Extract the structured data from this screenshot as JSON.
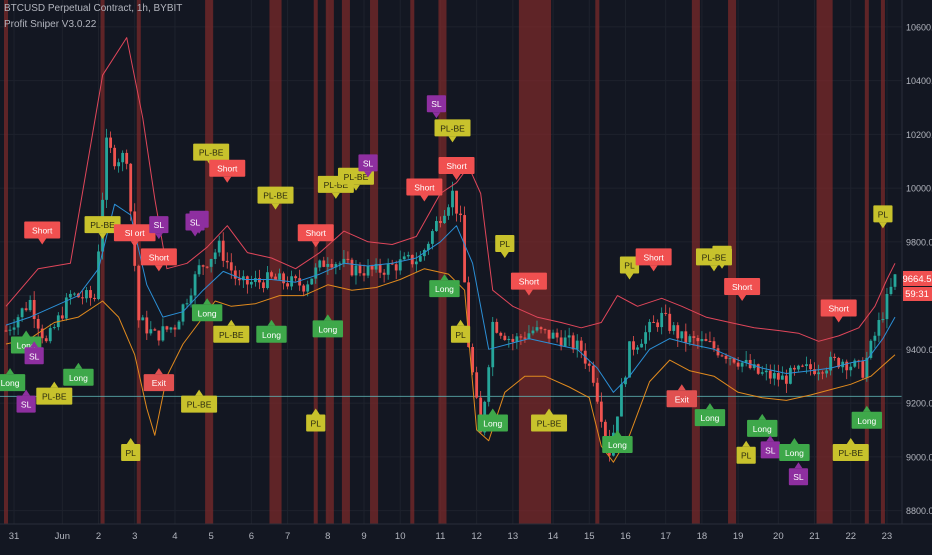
{
  "header": {
    "symbol_line": "BTCUSD Perpetual Contract, 1h, BYBIT",
    "indicator_line": "Profit Sniper V3.0.22"
  },
  "colors": {
    "background": "#131722",
    "grid": "#1e222d",
    "up_candle": "#26a69a",
    "down_candle": "#ef5350",
    "red_band": "#e0465a",
    "orange_band": "#e08a1e",
    "blue_line": "#2b8fd6",
    "shade": "#7a2a2a",
    "short_label": "#f05050",
    "long_label": "#3ea84a",
    "pl_label": "#c8c22c",
    "sl_label": "#8e2fa0",
    "exit_label": "#e05050"
  },
  "chart_data": {
    "type": "line",
    "ylim": [
      8750,
      10700
    ],
    "y_ticks": [
      "10600.0",
      "10400.0",
      "10200.0",
      "10000.0",
      "9800.0",
      "9600.0",
      "9400.0",
      "9200.0",
      "9000.0",
      "8800.0"
    ],
    "y_tick_values": [
      10600,
      10400,
      10200,
      10000,
      9800,
      9600,
      9400,
      9200,
      9000,
      8800
    ],
    "x_ticks": [
      "31",
      "Jun",
      "2",
      "3",
      "4",
      "5",
      "6",
      "7",
      "8",
      "9",
      "10",
      "11",
      "12",
      "13",
      "14",
      "15",
      "16",
      "17",
      "18",
      "19",
      "20",
      "21",
      "22",
      "23"
    ],
    "x_tick_index": [
      2,
      14,
      23,
      32,
      42,
      51,
      61,
      70,
      80,
      89,
      98,
      108,
      117,
      126,
      136,
      145,
      154,
      164,
      173,
      182,
      192,
      201,
      210,
      219
    ],
    "n_bars": 222,
    "last_price": "9664.5",
    "countdown": "59:31",
    "horizontal_line": 9225,
    "price_path": [
      [
        0,
        9470
      ],
      [
        6,
        9580
      ],
      [
        10,
        9420
      ],
      [
        16,
        9600
      ],
      [
        22,
        9590
      ],
      [
        25,
        10160
      ],
      [
        27,
        10110
      ],
      [
        30,
        10120
      ],
      [
        33,
        9510
      ],
      [
        37,
        9450
      ],
      [
        42,
        9490
      ],
      [
        48,
        9700
      ],
      [
        53,
        9780
      ],
      [
        58,
        9640
      ],
      [
        66,
        9660
      ],
      [
        74,
        9640
      ],
      [
        80,
        9740
      ],
      [
        86,
        9700
      ],
      [
        92,
        9690
      ],
      [
        98,
        9720
      ],
      [
        103,
        9740
      ],
      [
        108,
        9900
      ],
      [
        111,
        9980
      ],
      [
        113,
        9870
      ],
      [
        115,
        9420
      ],
      [
        118,
        9080
      ],
      [
        121,
        9500
      ],
      [
        126,
        9430
      ],
      [
        131,
        9470
      ],
      [
        138,
        9440
      ],
      [
        143,
        9400
      ],
      [
        146,
        9300
      ],
      [
        150,
        9020
      ],
      [
        155,
        9400
      ],
      [
        163,
        9520
      ],
      [
        168,
        9440
      ],
      [
        174,
        9420
      ],
      [
        181,
        9370
      ],
      [
        187,
        9310
      ],
      [
        193,
        9290
      ],
      [
        198,
        9320
      ],
      [
        203,
        9340
      ],
      [
        208,
        9360
      ],
      [
        213,
        9320
      ],
      [
        216,
        9450
      ],
      [
        219,
        9580
      ],
      [
        221,
        9664
      ]
    ],
    "red_band": [
      [
        0,
        9560
      ],
      [
        8,
        9700
      ],
      [
        16,
        9720
      ],
      [
        24,
        10420
      ],
      [
        30,
        10560
      ],
      [
        34,
        10260
      ],
      [
        37,
        9960
      ],
      [
        40,
        9700
      ],
      [
        45,
        9720
      ],
      [
        50,
        9780
      ],
      [
        55,
        9860
      ],
      [
        60,
        9760
      ],
      [
        66,
        9740
      ],
      [
        72,
        9700
      ],
      [
        78,
        9760
      ],
      [
        84,
        9840
      ],
      [
        90,
        9800
      ],
      [
        96,
        9790
      ],
      [
        102,
        9820
      ],
      [
        108,
        9980
      ],
      [
        112,
        10020
      ],
      [
        115,
        10080
      ],
      [
        118,
        9980
      ],
      [
        121,
        9620
      ],
      [
        126,
        9560
      ],
      [
        132,
        9520
      ],
      [
        138,
        9500
      ],
      [
        143,
        9480
      ],
      [
        148,
        9500
      ],
      [
        152,
        9600
      ],
      [
        157,
        9560
      ],
      [
        163,
        9590
      ],
      [
        168,
        9560
      ],
      [
        174,
        9520
      ],
      [
        180,
        9500
      ],
      [
        186,
        9480
      ],
      [
        192,
        9470
      ],
      [
        197,
        9460
      ],
      [
        202,
        9430
      ],
      [
        207,
        9450
      ],
      [
        212,
        9480
      ],
      [
        216,
        9560
      ],
      [
        219,
        9660
      ],
      [
        221,
        9720
      ]
    ],
    "orange_band": [
      [
        0,
        9420
      ],
      [
        6,
        9440
      ],
      [
        12,
        9500
      ],
      [
        18,
        9520
      ],
      [
        24,
        9580
      ],
      [
        28,
        9520
      ],
      [
        32,
        9380
      ],
      [
        35,
        9180
      ],
      [
        37,
        9080
      ],
      [
        40,
        9300
      ],
      [
        44,
        9420
      ],
      [
        48,
        9500
      ],
      [
        52,
        9580
      ],
      [
        56,
        9560
      ],
      [
        62,
        9570
      ],
      [
        68,
        9600
      ],
      [
        74,
        9600
      ],
      [
        80,
        9640
      ],
      [
        86,
        9620
      ],
      [
        92,
        9630
      ],
      [
        98,
        9660
      ],
      [
        104,
        9700
      ],
      [
        110,
        9680
      ],
      [
        114,
        9620
      ],
      [
        117,
        9100
      ],
      [
        120,
        9060
      ],
      [
        124,
        9240
      ],
      [
        129,
        9300
      ],
      [
        134,
        9300
      ],
      [
        140,
        9260
      ],
      [
        145,
        9220
      ],
      [
        148,
        9040
      ],
      [
        151,
        8980
      ],
      [
        155,
        9080
      ],
      [
        160,
        9280
      ],
      [
        165,
        9360
      ],
      [
        170,
        9320
      ],
      [
        176,
        9300
      ],
      [
        182,
        9240
      ],
      [
        188,
        9220
      ],
      [
        194,
        9210
      ],
      [
        200,
        9230
      ],
      [
        205,
        9250
      ],
      [
        210,
        9270
      ],
      [
        215,
        9300
      ],
      [
        218,
        9340
      ],
      [
        221,
        9380
      ]
    ],
    "blue_line": [
      [
        0,
        9490
      ],
      [
        6,
        9520
      ],
      [
        12,
        9560
      ],
      [
        18,
        9600
      ],
      [
        23,
        9700
      ],
      [
        27,
        9940
      ],
      [
        31,
        9900
      ],
      [
        35,
        9640
      ],
      [
        39,
        9520
      ],
      [
        44,
        9540
      ],
      [
        49,
        9620
      ],
      [
        54,
        9690
      ],
      [
        59,
        9660
      ],
      [
        66,
        9660
      ],
      [
        72,
        9650
      ],
      [
        78,
        9680
      ],
      [
        84,
        9720
      ],
      [
        90,
        9710
      ],
      [
        96,
        9720
      ],
      [
        102,
        9740
      ],
      [
        108,
        9800
      ],
      [
        112,
        9860
      ],
      [
        116,
        9720
      ],
      [
        120,
        9400
      ],
      [
        125,
        9420
      ],
      [
        130,
        9440
      ],
      [
        136,
        9420
      ],
      [
        142,
        9400
      ],
      [
        147,
        9330
      ],
      [
        151,
        9240
      ],
      [
        155,
        9300
      ],
      [
        160,
        9400
      ],
      [
        165,
        9440
      ],
      [
        170,
        9420
      ],
      [
        176,
        9400
      ],
      [
        182,
        9360
      ],
      [
        188,
        9330
      ],
      [
        194,
        9310
      ],
      [
        200,
        9320
      ],
      [
        205,
        9330
      ],
      [
        210,
        9350
      ],
      [
        214,
        9360
      ],
      [
        218,
        9440
      ],
      [
        221,
        9520
      ]
    ],
    "shaded_intervals": [
      [
        0,
        1
      ],
      [
        24,
        25
      ],
      [
        33,
        34
      ],
      [
        50,
        52
      ],
      [
        66,
        69
      ],
      [
        77,
        78
      ],
      [
        80,
        82
      ],
      [
        84,
        86
      ],
      [
        91,
        93
      ],
      [
        101,
        102
      ],
      [
        108,
        110
      ],
      [
        128,
        136
      ],
      [
        147,
        148
      ],
      [
        171,
        173
      ],
      [
        180,
        182
      ],
      [
        202,
        206
      ],
      [
        214,
        215
      ],
      [
        218,
        219
      ]
    ],
    "signals": [
      {
        "text": "Short",
        "type": "short",
        "x": 9,
        "price": 9790,
        "dir": "down"
      },
      {
        "text": "PL-BE",
        "type": "pl",
        "x": 24,
        "price": 9810,
        "dir": "down"
      },
      {
        "text": "Sl ort",
        "type": "short",
        "x": 32,
        "price": 9780,
        "dir": "down"
      },
      {
        "text": "SL",
        "type": "sl",
        "x": 38,
        "price": 9810,
        "dir": "down"
      },
      {
        "text": "Short",
        "type": "short",
        "x": 38,
        "price": 9690,
        "dir": "down"
      },
      {
        "text": "SL",
        "type": "sl",
        "x": 48,
        "price": 9830,
        "dir": "down"
      },
      {
        "text": "SL",
        "type": "sl",
        "x": 47,
        "price": 9820,
        "dir": "down"
      },
      {
        "text": "PL-BE",
        "type": "pl",
        "x": 51,
        "price": 10080,
        "dir": "down"
      },
      {
        "text": "Short",
        "type": "short",
        "x": 55,
        "price": 10020,
        "dir": "down"
      },
      {
        "text": "PL-BE",
        "type": "pl",
        "x": 67,
        "price": 9920,
        "dir": "down"
      },
      {
        "text": "Short",
        "type": "short",
        "x": 77,
        "price": 9780,
        "dir": "down"
      },
      {
        "text": "PL-BE",
        "type": "pl",
        "x": 82,
        "price": 9960,
        "dir": "down"
      },
      {
        "text": "PL-BE",
        "type": "pl",
        "x": 87,
        "price": 9990,
        "dir": "down"
      },
      {
        "text": "SL",
        "type": "sl",
        "x": 90,
        "price": 10040,
        "dir": "down"
      },
      {
        "text": "Short",
        "type": "short",
        "x": 104,
        "price": 9950,
        "dir": "down"
      },
      {
        "text": "SL",
        "type": "sl",
        "x": 107,
        "price": 10260,
        "dir": "down"
      },
      {
        "text": "PL-BE",
        "type": "pl",
        "x": 111,
        "price": 10170,
        "dir": "down"
      },
      {
        "text": "Short",
        "type": "short",
        "x": 112,
        "price": 10030,
        "dir": "down"
      },
      {
        "text": "PL",
        "type": "pl",
        "x": 124,
        "price": 9740,
        "dir": "down"
      },
      {
        "text": "Short",
        "type": "short",
        "x": 130,
        "price": 9600,
        "dir": "down"
      },
      {
        "text": "PL",
        "type": "pl",
        "x": 155,
        "price": 9660,
        "dir": "down"
      },
      {
        "text": "Short",
        "type": "short",
        "x": 161,
        "price": 9690,
        "dir": "down"
      },
      {
        "text": "PL",
        "type": "pl",
        "x": 178,
        "price": 9700,
        "dir": "down"
      },
      {
        "text": "PL-BE",
        "type": "pl",
        "x": 176,
        "price": 9690,
        "dir": "down"
      },
      {
        "text": "Short",
        "type": "short",
        "x": 183,
        "price": 9580,
        "dir": "down"
      },
      {
        "text": "Short",
        "type": "short",
        "x": 207,
        "price": 9500,
        "dir": "down"
      },
      {
        "text": "PL",
        "type": "pl",
        "x": 218,
        "price": 9850,
        "dir": "down"
      },
      {
        "text": "Long",
        "type": "long",
        "x": 1,
        "price": 9330,
        "dir": "up"
      },
      {
        "text": "SL",
        "type": "sl",
        "x": 5,
        "price": 9250,
        "dir": "up"
      },
      {
        "text": "Long",
        "type": "long",
        "x": 5,
        "price": 9470,
        "dir": "up"
      },
      {
        "text": "SL",
        "type": "sl",
        "x": 7,
        "price": 9430,
        "dir": "up"
      },
      {
        "text": "PL-BE",
        "type": "pl",
        "x": 12,
        "price": 9280,
        "dir": "up"
      },
      {
        "text": "Long",
        "type": "long",
        "x": 18,
        "price": 9350,
        "dir": "up"
      },
      {
        "text": "PL",
        "type": "pl",
        "x": 31,
        "price": 9070,
        "dir": "up"
      },
      {
        "text": "Exit",
        "type": "exit",
        "x": 38,
        "price": 9330,
        "dir": "up"
      },
      {
        "text": "PL-BE",
        "type": "pl",
        "x": 48,
        "price": 9250,
        "dir": "up"
      },
      {
        "text": "Long",
        "type": "long",
        "x": 50,
        "price": 9590,
        "dir": "up"
      },
      {
        "text": "PL-BE",
        "type": "pl",
        "x": 56,
        "price": 9510,
        "dir": "up"
      },
      {
        "text": "Long",
        "type": "long",
        "x": 66,
        "price": 9510,
        "dir": "up"
      },
      {
        "text": "PL",
        "type": "pl",
        "x": 77,
        "price": 9180,
        "dir": "up"
      },
      {
        "text": "Long",
        "type": "long",
        "x": 80,
        "price": 9530,
        "dir": "up"
      },
      {
        "text": "Long",
        "type": "long",
        "x": 109,
        "price": 9680,
        "dir": "up"
      },
      {
        "text": "PL",
        "type": "pl",
        "x": 113,
        "price": 9510,
        "dir": "up"
      },
      {
        "text": "Long",
        "type": "long",
        "x": 121,
        "price": 9180,
        "dir": "up"
      },
      {
        "text": "PL-BE",
        "type": "pl",
        "x": 135,
        "price": 9180,
        "dir": "up"
      },
      {
        "text": "Long",
        "type": "long",
        "x": 152,
        "price": 9100,
        "dir": "up"
      },
      {
        "text": "Exit",
        "type": "exit",
        "x": 168,
        "price": 9270,
        "dir": "up"
      },
      {
        "text": "Long",
        "type": "long",
        "x": 175,
        "price": 9200,
        "dir": "up"
      },
      {
        "text": "PL",
        "type": "pl",
        "x": 184,
        "price": 9060,
        "dir": "up"
      },
      {
        "text": "Long",
        "type": "long",
        "x": 188,
        "price": 9160,
        "dir": "up"
      },
      {
        "text": "SL",
        "type": "sl",
        "x": 190,
        "price": 9080,
        "dir": "up"
      },
      {
        "text": "Long",
        "type": "long",
        "x": 196,
        "price": 9070,
        "dir": "up"
      },
      {
        "text": "SL",
        "type": "sl",
        "x": 197,
        "price": 8980,
        "dir": "up"
      },
      {
        "text": "PL-BE",
        "type": "pl",
        "x": 210,
        "price": 9070,
        "dir": "up"
      },
      {
        "text": "Long",
        "type": "long",
        "x": 214,
        "price": 9190,
        "dir": "up"
      }
    ]
  }
}
